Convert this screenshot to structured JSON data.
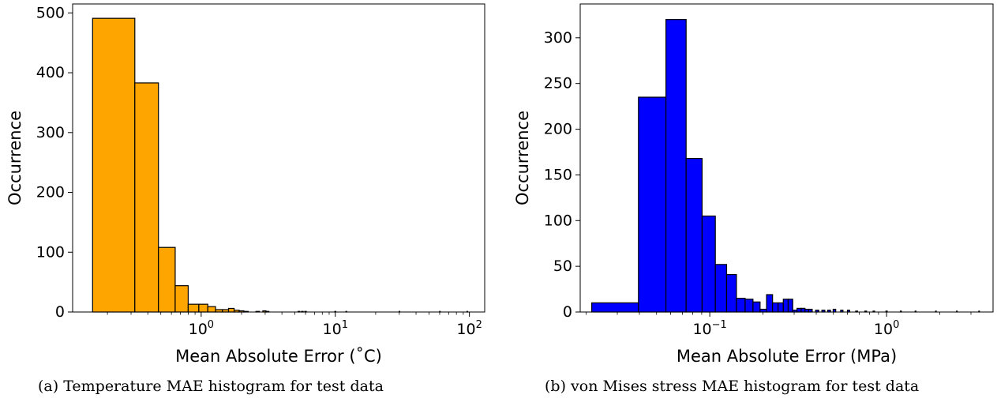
{
  "captions": {
    "a": "(a) Temperature MAE histogram for test data",
    "b": "(b) von Mises stress MAE histogram for test data"
  },
  "chart_data": [
    {
      "type": "histogram",
      "xscale": "log",
      "xlabel": "Mean Absolute Error (˚C)",
      "ylabel": "Occurrence",
      "xlim": [
        0.11,
        130
      ],
      "ylim": [
        0,
        515
      ],
      "yticks": [
        0,
        100,
        200,
        300,
        400,
        500
      ],
      "xticks": [
        {
          "value": 1,
          "base": "10",
          "exp": "0"
        },
        {
          "value": 10,
          "base": "10",
          "exp": "1"
        },
        {
          "value": 100,
          "base": "10",
          "exp": "2"
        }
      ],
      "color": "#ffa500",
      "edgecolor": "#000000",
      "bins": [
        {
          "x0": 0.155,
          "x1": 0.32,
          "count": 491
        },
        {
          "x0": 0.32,
          "x1": 0.48,
          "count": 383
        },
        {
          "x0": 0.48,
          "x1": 0.64,
          "count": 108
        },
        {
          "x0": 0.64,
          "x1": 0.8,
          "count": 44
        },
        {
          "x0": 0.8,
          "x1": 0.96,
          "count": 13
        },
        {
          "x0": 0.96,
          "x1": 1.12,
          "count": 13
        },
        {
          "x0": 1.12,
          "x1": 1.28,
          "count": 9
        },
        {
          "x0": 1.28,
          "x1": 1.44,
          "count": 4
        },
        {
          "x0": 1.44,
          "x1": 1.6,
          "count": 4
        },
        {
          "x0": 1.6,
          "x1": 1.76,
          "count": 6
        },
        {
          "x0": 1.76,
          "x1": 1.92,
          "count": 3
        },
        {
          "x0": 1.92,
          "x1": 2.08,
          "count": 2
        },
        {
          "x0": 2.08,
          "x1": 2.24,
          "count": 1
        },
        {
          "x0": 2.56,
          "x1": 2.72,
          "count": 1
        },
        {
          "x0": 2.88,
          "x1": 3.04,
          "count": 2
        },
        {
          "x0": 3.04,
          "x1": 3.2,
          "count": 1
        },
        {
          "x0": 5.28,
          "x1": 5.44,
          "count": 1
        },
        {
          "x0": 5.6,
          "x1": 5.76,
          "count": 1
        },
        {
          "x0": 5.92,
          "x1": 6.08,
          "count": 1
        },
        {
          "x0": 9.92,
          "x1": 10.08,
          "count": 1
        },
        {
          "x0": 12.0,
          "x1": 12.16,
          "count": 1
        },
        {
          "x0": 29.92,
          "x1": 30.08,
          "count": 1
        },
        {
          "x0": 59.92,
          "x1": 60.08,
          "count": 1
        },
        {
          "x0": 95.9,
          "x1": 96.06,
          "count": 1
        }
      ]
    },
    {
      "type": "histogram",
      "xscale": "log",
      "xlabel": "Mean Absolute Error (MPa)",
      "ylabel": "Occurrence",
      "xlim": [
        0.0185,
        4.0
      ],
      "ylim": [
        0,
        337
      ],
      "yticks": [
        0,
        50,
        100,
        150,
        200,
        250,
        300
      ],
      "xticks": [
        {
          "value": 0.1,
          "base": "10",
          "exp": "−1"
        },
        {
          "value": 1,
          "base": "10",
          "exp": "0"
        }
      ],
      "color": "#0000ff",
      "edgecolor": "#000000",
      "bins": [
        {
          "x0": 0.0215,
          "x1": 0.0395,
          "count": 10
        },
        {
          "x0": 0.0395,
          "x1": 0.0565,
          "count": 235
        },
        {
          "x0": 0.0565,
          "x1": 0.0735,
          "count": 320
        },
        {
          "x0": 0.0735,
          "x1": 0.0905,
          "count": 168
        },
        {
          "x0": 0.0905,
          "x1": 0.1075,
          "count": 105
        },
        {
          "x0": 0.1075,
          "x1": 0.1245,
          "count": 52
        },
        {
          "x0": 0.1245,
          "x1": 0.1415,
          "count": 41
        },
        {
          "x0": 0.1415,
          "x1": 0.1585,
          "count": 15
        },
        {
          "x0": 0.1585,
          "x1": 0.1755,
          "count": 14
        },
        {
          "x0": 0.1755,
          "x1": 0.1925,
          "count": 11
        },
        {
          "x0": 0.1925,
          "x1": 0.2095,
          "count": 3
        },
        {
          "x0": 0.2095,
          "x1": 0.2265,
          "count": 19
        },
        {
          "x0": 0.2265,
          "x1": 0.2435,
          "count": 10
        },
        {
          "x0": 0.2435,
          "x1": 0.2605,
          "count": 10
        },
        {
          "x0": 0.2605,
          "x1": 0.2775,
          "count": 14
        },
        {
          "x0": 0.2775,
          "x1": 0.2945,
          "count": 14
        },
        {
          "x0": 0.2945,
          "x1": 0.3115,
          "count": 2
        },
        {
          "x0": 0.3115,
          "x1": 0.3285,
          "count": 4
        },
        {
          "x0": 0.3285,
          "x1": 0.3455,
          "count": 4
        },
        {
          "x0": 0.3455,
          "x1": 0.3625,
          "count": 3
        },
        {
          "x0": 0.3625,
          "x1": 0.3795,
          "count": 3
        },
        {
          "x0": 0.3965,
          "x1": 0.4135,
          "count": 2
        },
        {
          "x0": 0.4305,
          "x1": 0.4475,
          "count": 2
        },
        {
          "x0": 0.4645,
          "x1": 0.4815,
          "count": 2
        },
        {
          "x0": 0.4985,
          "x1": 0.5155,
          "count": 3
        },
        {
          "x0": 0.5495,
          "x1": 0.5665,
          "count": 2
        },
        {
          "x0": 0.6005,
          "x1": 0.6175,
          "count": 2
        },
        {
          "x0": 0.6685,
          "x1": 0.6855,
          "count": 1
        },
        {
          "x0": 0.7535,
          "x1": 0.7705,
          "count": 1
        },
        {
          "x0": 0.8385,
          "x1": 0.8555,
          "count": 1
        },
        {
          "x0": 0.9915,
          "x1": 1.0085,
          "count": 1
        },
        {
          "x0": 1.1955,
          "x1": 1.2125,
          "count": 1
        },
        {
          "x0": 1.4505,
          "x1": 1.4675,
          "count": 1
        },
        {
          "x0": 1.8925,
          "x1": 1.9095,
          "count": 1
        },
        {
          "x0": 2.4875,
          "x1": 2.5045,
          "count": 1
        },
        {
          "x0": 3.3205,
          "x1": 3.3375,
          "count": 1
        }
      ]
    }
  ]
}
